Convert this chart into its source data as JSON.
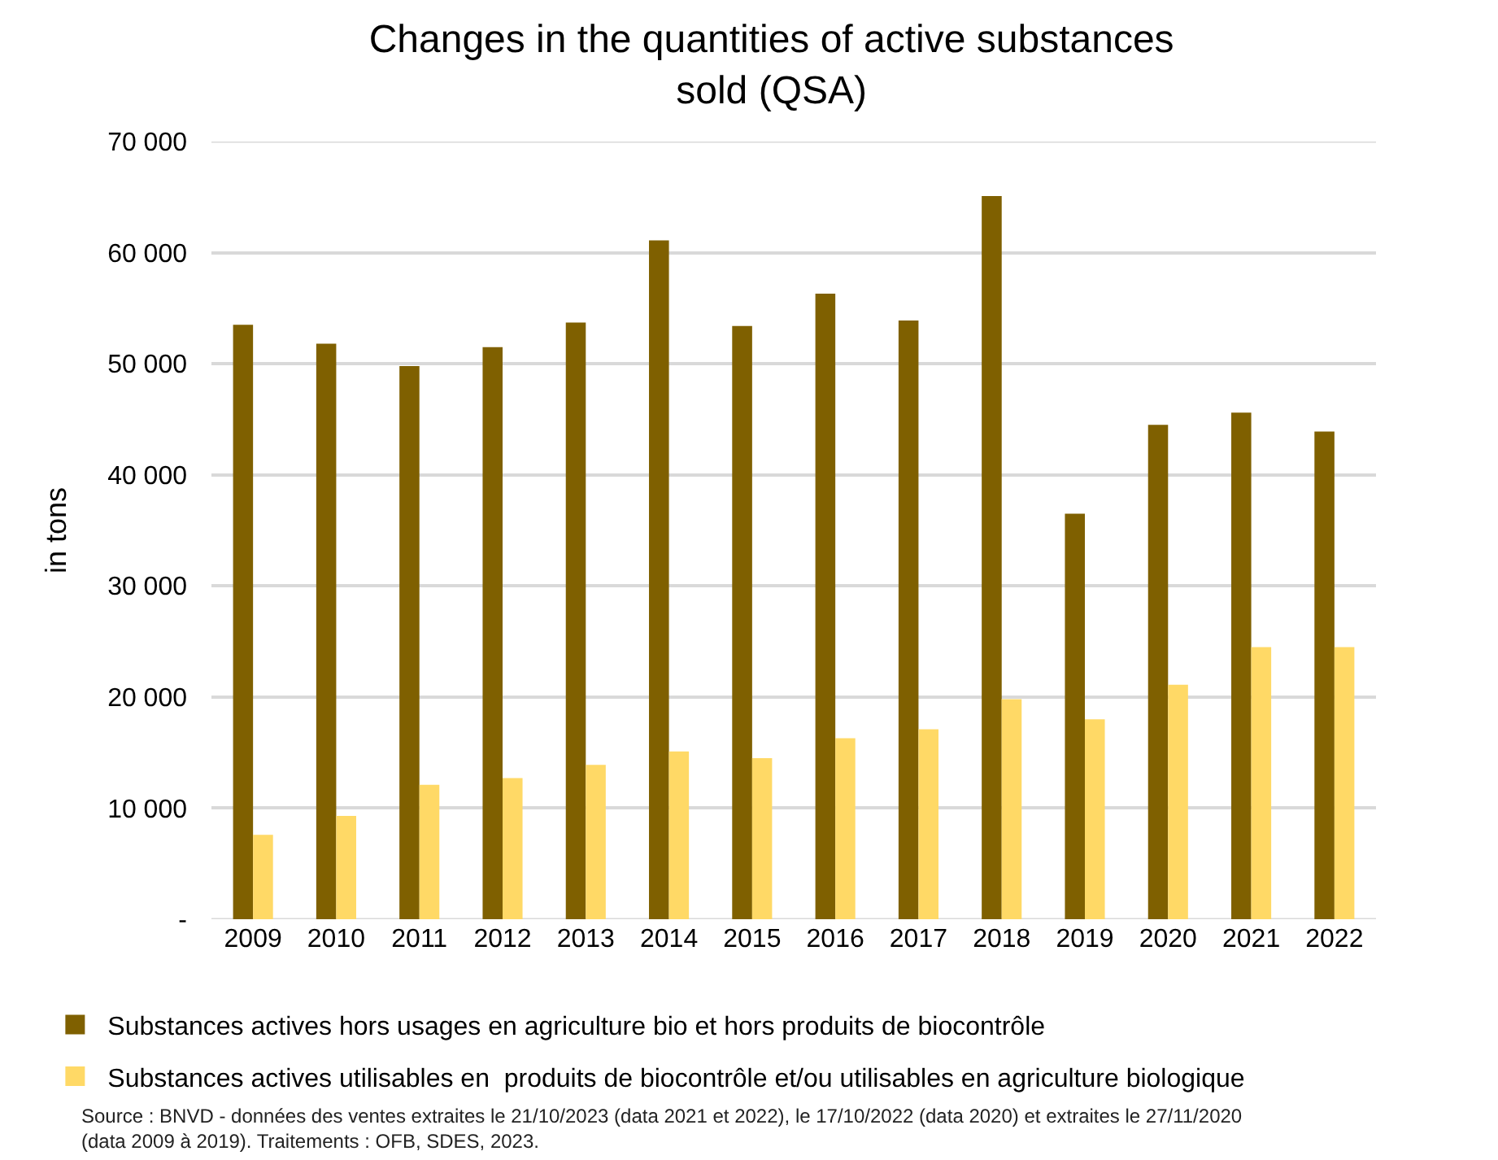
{
  "chart_data": {
    "type": "bar",
    "title": "Changes in the quantities of active substances\nsold (QSA)",
    "ylabel": "in tons",
    "categories": [
      "2009",
      "2010",
      "2011",
      "2012",
      "2013",
      "2014",
      "2015",
      "2016",
      "2017",
      "2018",
      "2019",
      "2020",
      "2021",
      "2022"
    ],
    "series": [
      {
        "name": "Substances actives hors usages en agriculture bio et hors produits de biocontrôle",
        "color": "#7f6000",
        "values": [
          53500,
          51800,
          49800,
          51500,
          53700,
          61100,
          53400,
          56300,
          53900,
          65100,
          36500,
          44500,
          45600,
          43900
        ]
      },
      {
        "name": "Substances actives utilisables en  produits de biocontrôle et/ou utilisables en agriculture biologique",
        "color": "#ffd966",
        "values": [
          7600,
          9300,
          12100,
          12700,
          13900,
          15100,
          14500,
          16300,
          17100,
          19800,
          18000,
          21100,
          24500,
          24500
        ]
      }
    ],
    "ylim": [
      0,
      70000
    ],
    "yticks": [
      {
        "value": 0,
        "label": "-"
      },
      {
        "value": 10000,
        "label": "10 000"
      },
      {
        "value": 20000,
        "label": "20 000"
      },
      {
        "value": 30000,
        "label": "30 000"
      },
      {
        "value": 40000,
        "label": "40 000"
      },
      {
        "value": 50000,
        "label": "50 000"
      },
      {
        "value": 60000,
        "label": "60 000"
      },
      {
        "value": 70000,
        "label": "70 000"
      }
    ],
    "grid": "y",
    "legend": "bottom",
    "annotations": [
      "Source : BNVD - données des ventes extraites le 21/10/2023 (data 2021 et 2022), le 17/10/2022 (data 2020) et extraites le 27/11/2020\n(data 2009 à 2019). Traitements : OFB, SDES, 2023."
    ]
  }
}
